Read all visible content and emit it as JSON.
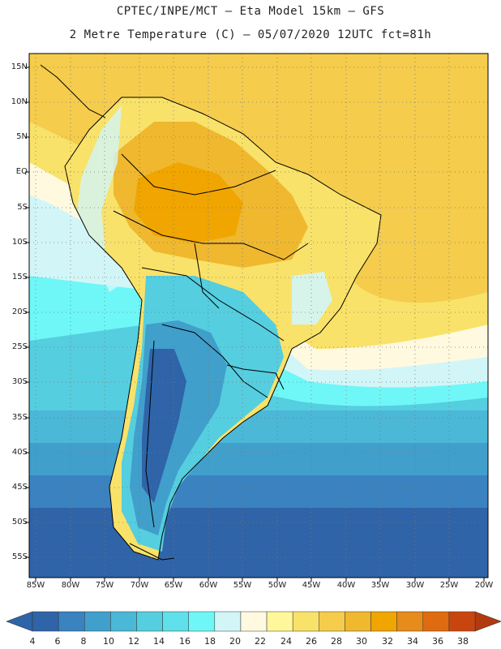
{
  "header": {
    "line1": "CPTEC/INPE/MCT –  Eta Model 15km – GFS",
    "line2": "2 Metre Temperature (C) – 05/07/2020 12UTC fct=81h"
  },
  "axes": {
    "lat_labels": [
      "15N",
      "10N",
      "5N",
      "EQ",
      "5S",
      "10S",
      "15S",
      "20S",
      "25S",
      "30S",
      "35S",
      "40S",
      "45S",
      "50S",
      "55S"
    ],
    "lon_labels": [
      "85W",
      "80W",
      "75W",
      "70W",
      "65W",
      "60W",
      "55W",
      "50W",
      "45W",
      "40W",
      "35W",
      "30W",
      "25W",
      "20W"
    ]
  },
  "colorbar": {
    "labels": [
      "4",
      "6",
      "8",
      "10",
      "12",
      "14",
      "16",
      "18",
      "20",
      "22",
      "24",
      "26",
      "28",
      "30",
      "32",
      "34",
      "36",
      "38"
    ],
    "colors": [
      "#2f64a8",
      "#3a82c0",
      "#419fcb",
      "#4bb8d8",
      "#55cee0",
      "#5fe0ea",
      "#6ff7f7",
      "#d2f6f8",
      "#fff9df",
      "#fff79a",
      "#f9e26a",
      "#f5cc4c",
      "#efb82f",
      "#f0a500",
      "#e78b1d",
      "#df6b11",
      "#c9450f",
      "#b23a0f"
    ]
  },
  "legend": {
    "low_color": "#2f64a8",
    "high_color": "#b23a0f"
  }
}
